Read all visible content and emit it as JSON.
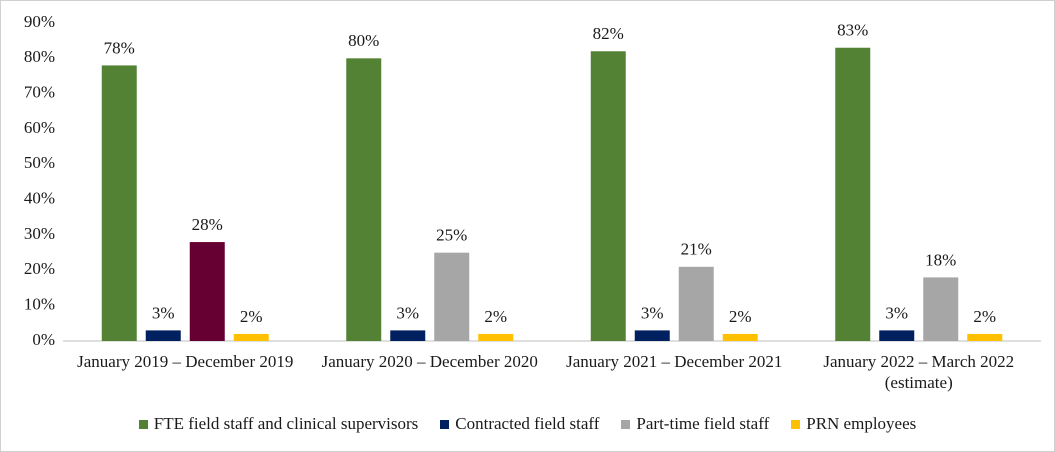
{
  "chart_data": {
    "type": "bar",
    "categories": [
      "January 2019 – December 2019",
      "January 2020 – December 2020",
      "January 2021 – December 2021",
      "January 2022 – March 2022 (estimate)"
    ],
    "series": [
      {
        "name": "FTE field staff and clinical supervisors",
        "color": "#548235",
        "values": [
          78,
          80,
          82,
          83
        ],
        "value_labels": [
          "78%",
          "80%",
          "82%",
          "83%"
        ]
      },
      {
        "name": "Contracted field staff",
        "color": "#002060",
        "values": [
          3,
          3,
          3,
          3
        ],
        "value_labels": [
          "3%",
          "3%",
          "3%",
          "3%"
        ]
      },
      {
        "name": "Part-time field staff",
        "color": "#a6a6a6",
        "colors": [
          "#660033",
          "#a6a6a6",
          "#a6a6a6",
          "#a6a6a6"
        ],
        "values": [
          28,
          25,
          21,
          18
        ],
        "value_labels": [
          "28%",
          "25%",
          "21%",
          "18%"
        ]
      },
      {
        "name": "PRN employees",
        "color": "#ffc000",
        "values": [
          2,
          2,
          2,
          2
        ],
        "value_labels": [
          "2%",
          "2%",
          "2%",
          "2%"
        ]
      }
    ],
    "ylim": [
      0,
      90
    ],
    "yticks": [
      {
        "value": 0,
        "label": "0%"
      },
      {
        "value": 10,
        "label": "10%"
      },
      {
        "value": 20,
        "label": "20%"
      },
      {
        "value": 30,
        "label": "30%"
      },
      {
        "value": 40,
        "label": "40%"
      },
      {
        "value": 50,
        "label": "50%"
      },
      {
        "value": 60,
        "label": "60%"
      },
      {
        "value": 70,
        "label": "70%"
      },
      {
        "value": 80,
        "label": "80%"
      },
      {
        "value": 90,
        "label": "90%"
      }
    ],
    "legend": "bottom"
  }
}
